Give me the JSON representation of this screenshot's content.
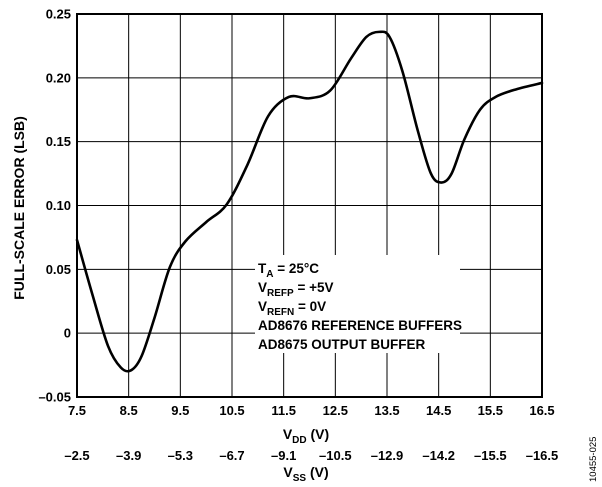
{
  "chart_data": {
    "type": "line",
    "ylabel": "FULL-SCALE ERROR (LSB)",
    "xlabel": {
      "main": "V",
      "sub": "DD",
      "unit": " (V)"
    },
    "x2label": {
      "main": "V",
      "sub": "SS",
      "unit": " (V)"
    },
    "xlim": [
      7.5,
      16.5
    ],
    "ylim": [
      -0.05,
      0.25
    ],
    "grid": true,
    "x_ticks": [
      "7.5",
      "8.5",
      "9.5",
      "10.5",
      "11.5",
      "12.5",
      "13.5",
      "14.5",
      "15.5",
      "16.5"
    ],
    "x2_ticks": [
      "–2.5",
      "–3.9",
      "–5.3",
      "–6.7",
      "–9.1",
      "–10.5",
      "–12.9",
      "–14.2",
      "–15.5",
      "–16.5"
    ],
    "y_ticks": [
      "–0.05",
      "0",
      "0.05",
      "0.10",
      "0.15",
      "0.20",
      "0.25"
    ],
    "annotations": [
      {
        "main": "T",
        "sub": "A",
        "rest": " = 25°C"
      },
      {
        "main": "V",
        "sub": "REFP",
        "rest": " = +5V"
      },
      {
        "main": "V",
        "sub": "REFN",
        "rest": " = 0V"
      },
      {
        "main": "AD8676 REFERENCE BUFFERS",
        "sub": "",
        "rest": ""
      },
      {
        "main": "AD8675 OUTPUT BUFFER",
        "sub": "",
        "rest": ""
      }
    ],
    "series": [
      {
        "color": "#000000",
        "x": [
          7.5,
          7.8,
          8.1,
          8.35,
          8.55,
          8.75,
          9.0,
          9.3,
          9.6,
          10.0,
          10.4,
          10.8,
          11.2,
          11.6,
          12.0,
          12.4,
          12.8,
          13.1,
          13.35,
          13.55,
          13.8,
          14.1,
          14.35,
          14.55,
          14.75,
          15.0,
          15.3,
          15.6,
          16.0,
          16.5
        ],
        "y": [
          0.073,
          0.03,
          -0.01,
          -0.027,
          -0.029,
          -0.018,
          0.012,
          0.052,
          0.072,
          0.087,
          0.101,
          0.132,
          0.17,
          0.185,
          0.184,
          0.19,
          0.215,
          0.232,
          0.236,
          0.232,
          0.205,
          0.158,
          0.125,
          0.118,
          0.125,
          0.152,
          0.175,
          0.185,
          0.191,
          0.196
        ]
      }
    ]
  },
  "figure_code": "10455-025"
}
